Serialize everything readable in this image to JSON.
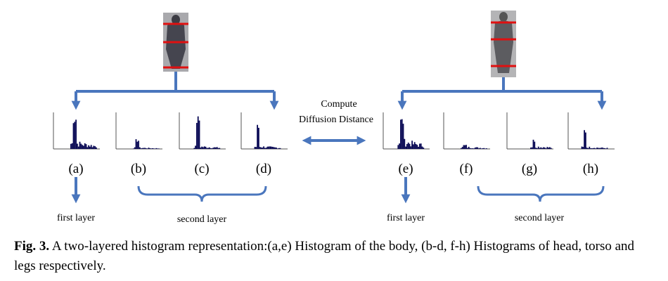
{
  "figure": {
    "panels": [
      "(a)",
      "(b)",
      "(c)",
      "(d)",
      "(e)",
      "(f)",
      "(g)",
      "(h)"
    ],
    "left_group": {
      "first_layer": "first layer",
      "second_layer": "second layer"
    },
    "right_group": {
      "first_layer": "first layer",
      "second_layer": "second layer"
    },
    "center_label": [
      "Compute",
      "Diffusion Distance"
    ]
  },
  "caption": {
    "label": "Fig. 3.",
    "text": "A two-layered histogram representation:(a,e) Histogram of the body, (b-d, f-h) Histograms of head, torso and legs respectively."
  }
}
